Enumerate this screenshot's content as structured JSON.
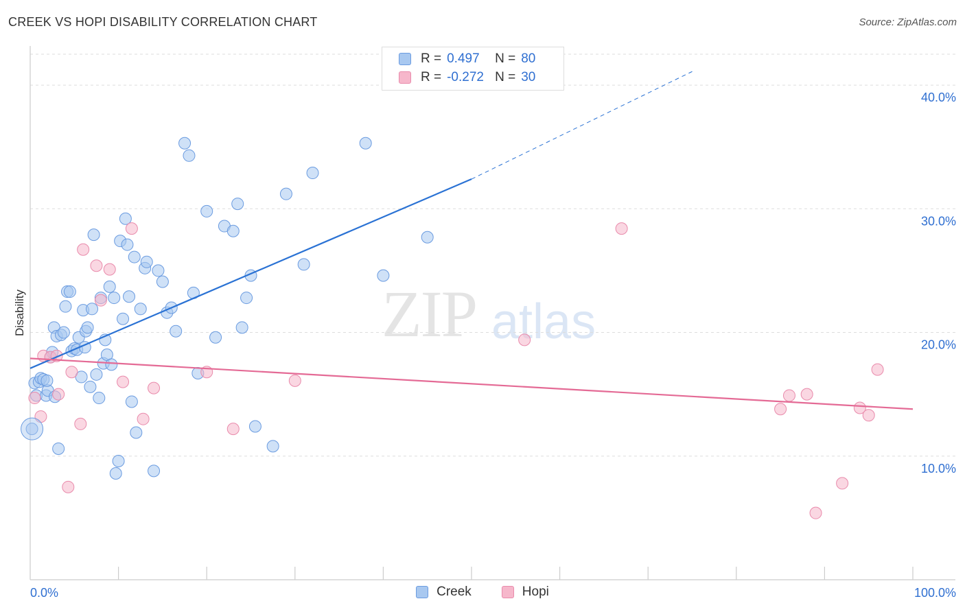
{
  "header": {
    "title": "CREEK VS HOPI DISABILITY CORRELATION CHART",
    "source": "Source: ZipAtlas.com"
  },
  "watermark": {
    "zip": "ZIP",
    "atlas": "atlas"
  },
  "legend": {
    "rows": [
      {
        "r_label": "R =",
        "r_value": "0.497",
        "n_label": "N =",
        "n_value": "80",
        "color": "#a8c8f0"
      },
      {
        "r_label": "R =",
        "r_value": "-0.272",
        "n_label": "N =",
        "n_value": "30",
        "color": "#f6b7cb"
      }
    ]
  },
  "bottom_legend": [
    {
      "label": "Creek",
      "color": "#a8c8f0"
    },
    {
      "label": "Hopi",
      "color": "#f6b7cb"
    }
  ],
  "colors": {
    "creek_fill": "#a8c8f0",
    "creek_stroke": "#6a9be0",
    "creek_line": "#2a72d4",
    "hopi_fill": "#f6b7cb",
    "hopi_stroke": "#e98aab",
    "hopi_line": "#e46a95",
    "axis_label": "#2f6fd1",
    "grid": "#dddddd"
  },
  "chart_data": {
    "type": "scatter",
    "title": "CREEK VS HOPI DISABILITY CORRELATION CHART",
    "xlabel": "",
    "ylabel": "Disability",
    "xlim": [
      0,
      100
    ],
    "ylim": [
      0,
      43
    ],
    "x_tick_labels": [
      "0.0%",
      "100.0%"
    ],
    "y_ticks": [
      10,
      20,
      30,
      40
    ],
    "y_tick_labels": [
      "10.0%",
      "20.0%",
      "30.0%",
      "40.0%"
    ],
    "grid": true,
    "legend_position": "top-center",
    "series": [
      {
        "name": "Creek",
        "r": 0.497,
        "n": 80,
        "trend": {
          "x": [
            0,
            50
          ],
          "y": [
            17.1,
            32.4
          ],
          "dashed_to": [
            75,
            41.1
          ]
        },
        "points": [
          [
            0.5,
            15.9
          ],
          [
            0.7,
            14.9
          ],
          [
            1.0,
            16.0
          ],
          [
            1.2,
            16.3
          ],
          [
            1.5,
            16.2
          ],
          [
            1.8,
            14.9
          ],
          [
            2.0,
            15.3
          ],
          [
            2.3,
            18.0
          ],
          [
            2.5,
            18.4
          ],
          [
            2.7,
            20.4
          ],
          [
            2.8,
            14.8
          ],
          [
            3.0,
            19.7
          ],
          [
            3.2,
            10.6
          ],
          [
            3.5,
            19.8
          ],
          [
            3.8,
            20.0
          ],
          [
            4.0,
            22.1
          ],
          [
            4.2,
            23.3
          ],
          [
            4.5,
            23.3
          ],
          [
            4.7,
            18.5
          ],
          [
            5.0,
            18.7
          ],
          [
            5.3,
            18.6
          ],
          [
            5.5,
            19.6
          ],
          [
            5.8,
            16.4
          ],
          [
            6.0,
            21.8
          ],
          [
            6.3,
            20.1
          ],
          [
            6.5,
            20.4
          ],
          [
            6.8,
            15.6
          ],
          [
            7.0,
            21.9
          ],
          [
            7.2,
            27.9
          ],
          [
            7.5,
            16.6
          ],
          [
            7.8,
            14.7
          ],
          [
            8.0,
            22.8
          ],
          [
            8.3,
            17.5
          ],
          [
            8.5,
            19.4
          ],
          [
            8.7,
            18.2
          ],
          [
            9.0,
            23.7
          ],
          [
            9.2,
            17.4
          ],
          [
            9.5,
            22.8
          ],
          [
            9.7,
            8.6
          ],
          [
            10.0,
            9.6
          ],
          [
            10.2,
            27.4
          ],
          [
            10.5,
            21.1
          ],
          [
            10.8,
            29.2
          ],
          [
            11.0,
            27.1
          ],
          [
            11.2,
            22.9
          ],
          [
            11.5,
            14.4
          ],
          [
            11.8,
            26.1
          ],
          [
            12.0,
            11.9
          ],
          [
            12.5,
            21.9
          ],
          [
            13.0,
            25.2
          ],
          [
            13.2,
            25.7
          ],
          [
            14.0,
            8.8
          ],
          [
            14.5,
            25.0
          ],
          [
            15.0,
            24.1
          ],
          [
            15.5,
            21.6
          ],
          [
            16.0,
            22.0
          ],
          [
            16.5,
            20.1
          ],
          [
            17.5,
            35.3
          ],
          [
            18.0,
            34.3
          ],
          [
            18.5,
            23.2
          ],
          [
            19.0,
            16.7
          ],
          [
            20.0,
            29.8
          ],
          [
            21.0,
            19.6
          ],
          [
            22.0,
            28.6
          ],
          [
            23.0,
            28.2
          ],
          [
            23.5,
            30.4
          ],
          [
            24.0,
            20.4
          ],
          [
            24.5,
            22.8
          ],
          [
            25.0,
            24.6
          ],
          [
            25.5,
            12.4
          ],
          [
            27.5,
            10.8
          ],
          [
            29.0,
            31.2
          ],
          [
            31.0,
            25.5
          ],
          [
            32.0,
            32.9
          ],
          [
            38.0,
            35.3
          ],
          [
            40.0,
            24.6
          ],
          [
            45.0,
            27.7
          ],
          [
            0.2,
            12.2
          ],
          [
            6.2,
            18.8
          ],
          [
            1.9,
            16.1
          ]
        ]
      },
      {
        "name": "Hopi",
        "r": -0.272,
        "n": 30,
        "trend": {
          "x": [
            0,
            100
          ],
          "y": [
            17.9,
            13.8
          ]
        },
        "points": [
          [
            0.5,
            14.7
          ],
          [
            1.2,
            13.2
          ],
          [
            1.5,
            18.1
          ],
          [
            2.3,
            18.0
          ],
          [
            3.0,
            18.1
          ],
          [
            3.2,
            15.0
          ],
          [
            4.3,
            7.5
          ],
          [
            4.7,
            16.8
          ],
          [
            5.7,
            12.6
          ],
          [
            6.0,
            26.7
          ],
          [
            7.5,
            25.4
          ],
          [
            8.0,
            22.6
          ],
          [
            9.0,
            25.1
          ],
          [
            10.5,
            16.0
          ],
          [
            11.5,
            28.4
          ],
          [
            12.8,
            13.0
          ],
          [
            14.0,
            15.5
          ],
          [
            20.0,
            16.8
          ],
          [
            23.0,
            12.2
          ],
          [
            30.0,
            16.1
          ],
          [
            56.0,
            19.4
          ],
          [
            67.0,
            28.4
          ],
          [
            85.0,
            13.8
          ],
          [
            86.0,
            14.9
          ],
          [
            88.0,
            15.0
          ],
          [
            89.0,
            5.4
          ],
          [
            92.0,
            7.8
          ],
          [
            94.0,
            13.9
          ],
          [
            95.0,
            13.3
          ],
          [
            96.0,
            17.0
          ]
        ]
      }
    ]
  }
}
